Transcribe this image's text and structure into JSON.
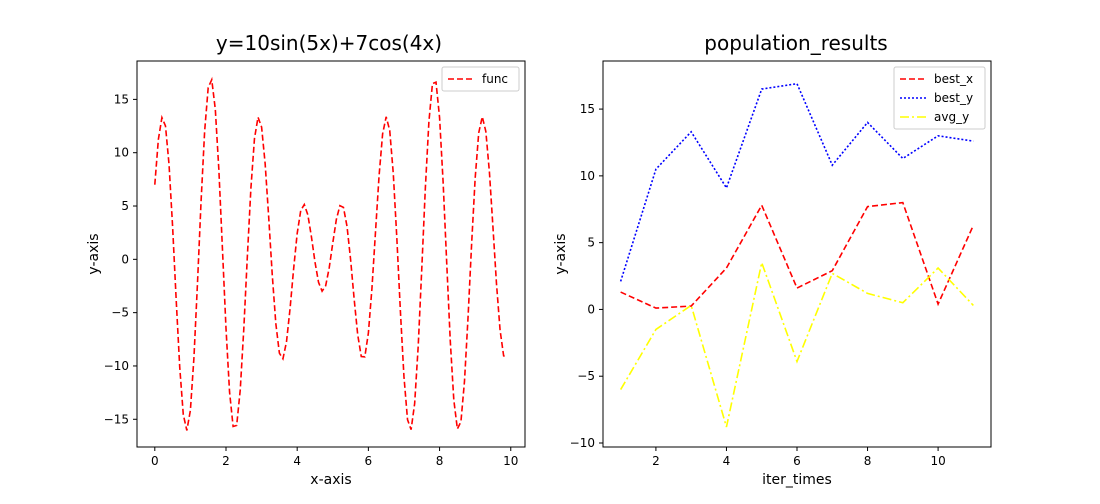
{
  "chart_data": [
    {
      "type": "line",
      "title": "y=10sin(5x)+7cos(4x)",
      "xlabel": "x-axis",
      "ylabel": "y-axis",
      "xlim": [
        -0.5,
        10.4
      ],
      "ylim": [
        -17.6,
        18.6
      ],
      "xticks": [
        0,
        2,
        4,
        6,
        8,
        10
      ],
      "yticks": [
        -15,
        -10,
        -5,
        0,
        5,
        10,
        15
      ],
      "grid": false,
      "legend_position": "top-right",
      "x_range": [
        0,
        9.9
      ],
      "x_step": 0.1,
      "series": [
        {
          "name": "func",
          "color": "#ff0000",
          "style": "dashed",
          "formula": "10*sin(5*x) + 7*cos(4*x)"
        }
      ]
    },
    {
      "type": "line",
      "title": "population_results",
      "xlabel": "iter_times",
      "ylabel": "y-axis",
      "xlim": [
        0.5,
        11.5
      ],
      "ylim": [
        -10.3,
        18.6
      ],
      "xticks": [
        2,
        4,
        6,
        8,
        10
      ],
      "yticks": [
        -10,
        -5,
        0,
        5,
        10,
        15
      ],
      "grid": false,
      "legend_position": "top-right",
      "x": [
        1,
        2,
        3,
        4,
        5,
        6,
        7,
        8,
        9,
        10,
        11
      ],
      "series": [
        {
          "name": "best_x",
          "color": "#ff0000",
          "style": "dashed",
          "values": [
            1.3,
            0.1,
            0.25,
            3.1,
            7.8,
            1.6,
            2.9,
            7.7,
            8.0,
            0.4,
            6.3
          ]
        },
        {
          "name": "best_y",
          "color": "#0000ff",
          "style": "dotted",
          "values": [
            2.1,
            10.5,
            13.3,
            9.1,
            16.5,
            16.9,
            10.8,
            14.0,
            11.3,
            13.0,
            12.6
          ]
        },
        {
          "name": "avg_y",
          "color": "#ffff00",
          "style": "dashdot",
          "values": [
            -6.0,
            -1.5,
            0.3,
            -8.8,
            3.5,
            -3.9,
            2.7,
            1.2,
            0.5,
            3.1,
            0.3
          ]
        }
      ]
    }
  ]
}
